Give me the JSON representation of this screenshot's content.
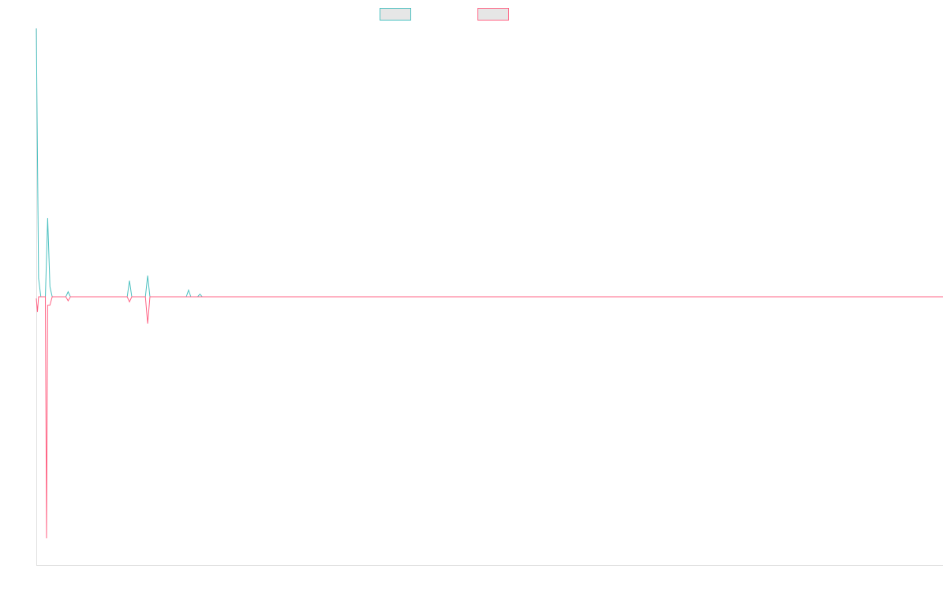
{
  "chart_data": {
    "type": "line",
    "title": "",
    "xlabel": "",
    "ylabel": "",
    "grid": false,
    "legend_position": "top-center",
    "x_count": 400,
    "ylim": [
      -8,
      8
    ],
    "series": [
      {
        "color": "#4bc0c0",
        "swatch_fill": "#e6e6e6",
        "points": [
          [
            0,
            8.0
          ],
          [
            1,
            0.55
          ],
          [
            2,
            0.0
          ],
          [
            3,
            0.0
          ],
          [
            4,
            0.0
          ],
          [
            5,
            2.35
          ],
          [
            6,
            0.3
          ],
          [
            7,
            0.0
          ],
          [
            13,
            0.0
          ],
          [
            14,
            0.15
          ],
          [
            15,
            0.0
          ],
          [
            40,
            0.0
          ],
          [
            41,
            0.48
          ],
          [
            42,
            0.0
          ],
          [
            48,
            0.0
          ],
          [
            49,
            0.63
          ],
          [
            50,
            0.0
          ],
          [
            66,
            0.0
          ],
          [
            67,
            0.2
          ],
          [
            68,
            0.0
          ],
          [
            71,
            0.0
          ],
          [
            72,
            0.08
          ],
          [
            73,
            0.0
          ],
          [
            399,
            0.0
          ]
        ]
      },
      {
        "color": "#ff6384",
        "swatch_fill": "#e6e6e6",
        "points": [
          [
            0,
            -0.05
          ],
          [
            0.5,
            -0.45
          ],
          [
            1,
            0.0
          ],
          [
            4,
            0.0
          ],
          [
            4.5,
            -7.2
          ],
          [
            5,
            -0.25
          ],
          [
            6,
            -0.25
          ],
          [
            7,
            0.0
          ],
          [
            13,
            0.0
          ],
          [
            14,
            -0.12
          ],
          [
            15,
            0.0
          ],
          [
            40,
            0.0
          ],
          [
            41,
            -0.15
          ],
          [
            42,
            0.0
          ],
          [
            48,
            0.0
          ],
          [
            49,
            -0.8
          ],
          [
            50,
            0.0
          ],
          [
            399,
            0.0
          ]
        ]
      }
    ]
  }
}
